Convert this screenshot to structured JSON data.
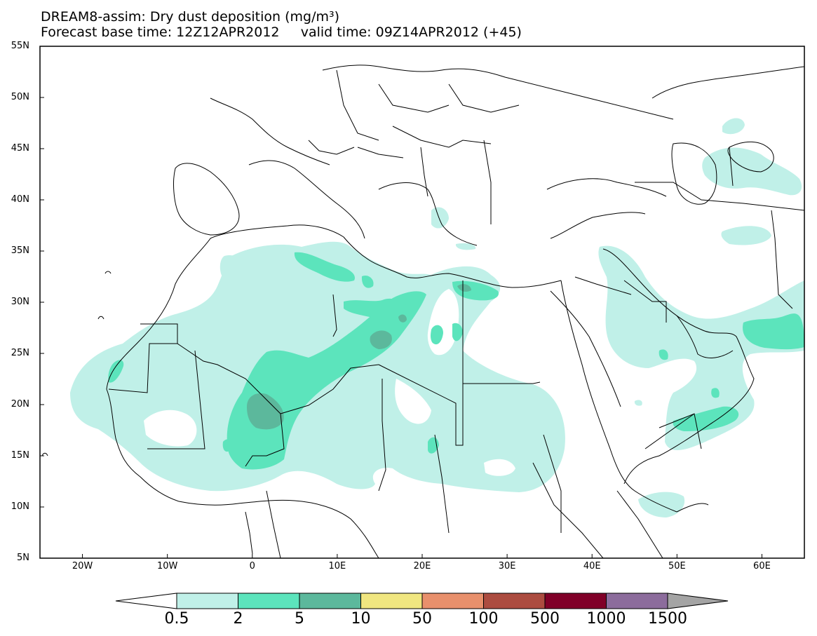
{
  "header": {
    "title_line1": "DREAM8-assim: Dry dust deposition (mg/m³)",
    "title_line2": "Forecast base time: 12Z12APR2012     valid time: 09Z14APR2012 (+45)"
  },
  "map": {
    "projection": "lat-lon",
    "lon_range": [
      -25,
      65
    ],
    "lat_range": [
      5,
      55
    ],
    "lat_ticks": [
      {
        "value": 55,
        "label": "55N"
      },
      {
        "value": 50,
        "label": "50N"
      },
      {
        "value": 45,
        "label": "45N"
      },
      {
        "value": 40,
        "label": "40N"
      },
      {
        "value": 35,
        "label": "35N"
      },
      {
        "value": 30,
        "label": "30N"
      },
      {
        "value": 25,
        "label": "25N"
      },
      {
        "value": 20,
        "label": "20N"
      },
      {
        "value": 15,
        "label": "15N"
      },
      {
        "value": 10,
        "label": "10N"
      },
      {
        "value": 5,
        "label": "5N"
      }
    ],
    "lon_ticks": [
      {
        "value": -20,
        "label": "20W"
      },
      {
        "value": -10,
        "label": "10W"
      },
      {
        "value": 0,
        "label": "0"
      },
      {
        "value": 10,
        "label": "10E"
      },
      {
        "value": 20,
        "label": "20E"
      },
      {
        "value": 30,
        "label": "30E"
      },
      {
        "value": 40,
        "label": "40E"
      },
      {
        "value": 50,
        "label": "50E"
      },
      {
        "value": 60,
        "label": "60E"
      }
    ]
  },
  "colorbar": {
    "labels": [
      "0.5",
      "2",
      "5",
      "10",
      "50",
      "100",
      "500",
      "1000",
      "1500"
    ],
    "colors": [
      "#c0f0e8",
      "#5ce4bc",
      "#5cb89c",
      "#f0e680",
      "#e8906c",
      "#ac4c40",
      "#800028",
      "#8c6c9c"
    ],
    "under_color": "#ffffff",
    "over_color": "#a4a4a4"
  }
}
